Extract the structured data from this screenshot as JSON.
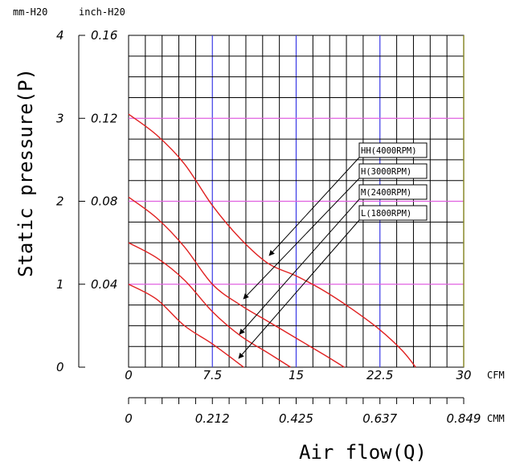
{
  "chart_data": {
    "type": "line",
    "title": "",
    "ylabel": "Static pressure(P)",
    "xlabel": "Air flow(Q)",
    "y_units": {
      "primary": "mm-H20",
      "secondary": "inch-H20"
    },
    "x_units": {
      "primary": "CFM",
      "secondary": "CMM"
    },
    "xlim": [
      0,
      30
    ],
    "ylim": [
      0,
      4
    ],
    "y_ticks_mm": [
      "4",
      "3",
      "2",
      "1",
      "0"
    ],
    "y_ticks_inch": [
      "0.16",
      "0.12",
      "0.08",
      "0.04"
    ],
    "x_ticks_cfm": [
      "0",
      "7.5",
      "15",
      "22.5",
      "30"
    ],
    "x_ticks_cmm": [
      "0",
      "0.212",
      "0.425",
      "0.637",
      "0.849"
    ],
    "grid": true,
    "series": [
      {
        "name": "HH(4000RPM)",
        "x": [
          0,
          2.5,
          5,
          7.5,
          10,
          12.5,
          15,
          17.5,
          20,
          22.5,
          24.5,
          25.7
        ],
        "y": [
          3.05,
          2.8,
          2.45,
          1.95,
          1.55,
          1.25,
          1.1,
          0.92,
          0.7,
          0.45,
          0.2,
          0
        ]
      },
      {
        "name": "H(3000RPM)",
        "x": [
          0,
          2.5,
          5,
          7.5,
          10,
          12.5,
          15,
          17.5,
          19.3
        ],
        "y": [
          2.05,
          1.8,
          1.45,
          1.0,
          0.75,
          0.55,
          0.35,
          0.15,
          0
        ]
      },
      {
        "name": "M(2400RPM)",
        "x": [
          0,
          2.5,
          5,
          7.5,
          10,
          12.5,
          14.5
        ],
        "y": [
          1.5,
          1.32,
          1.05,
          0.67,
          0.38,
          0.17,
          0
        ]
      },
      {
        "name": "L(1800RPM)",
        "x": [
          0,
          2.5,
          5,
          7.5,
          10.3
        ],
        "y": [
          1.0,
          0.82,
          0.5,
          0.28,
          0
        ]
      }
    ]
  }
}
